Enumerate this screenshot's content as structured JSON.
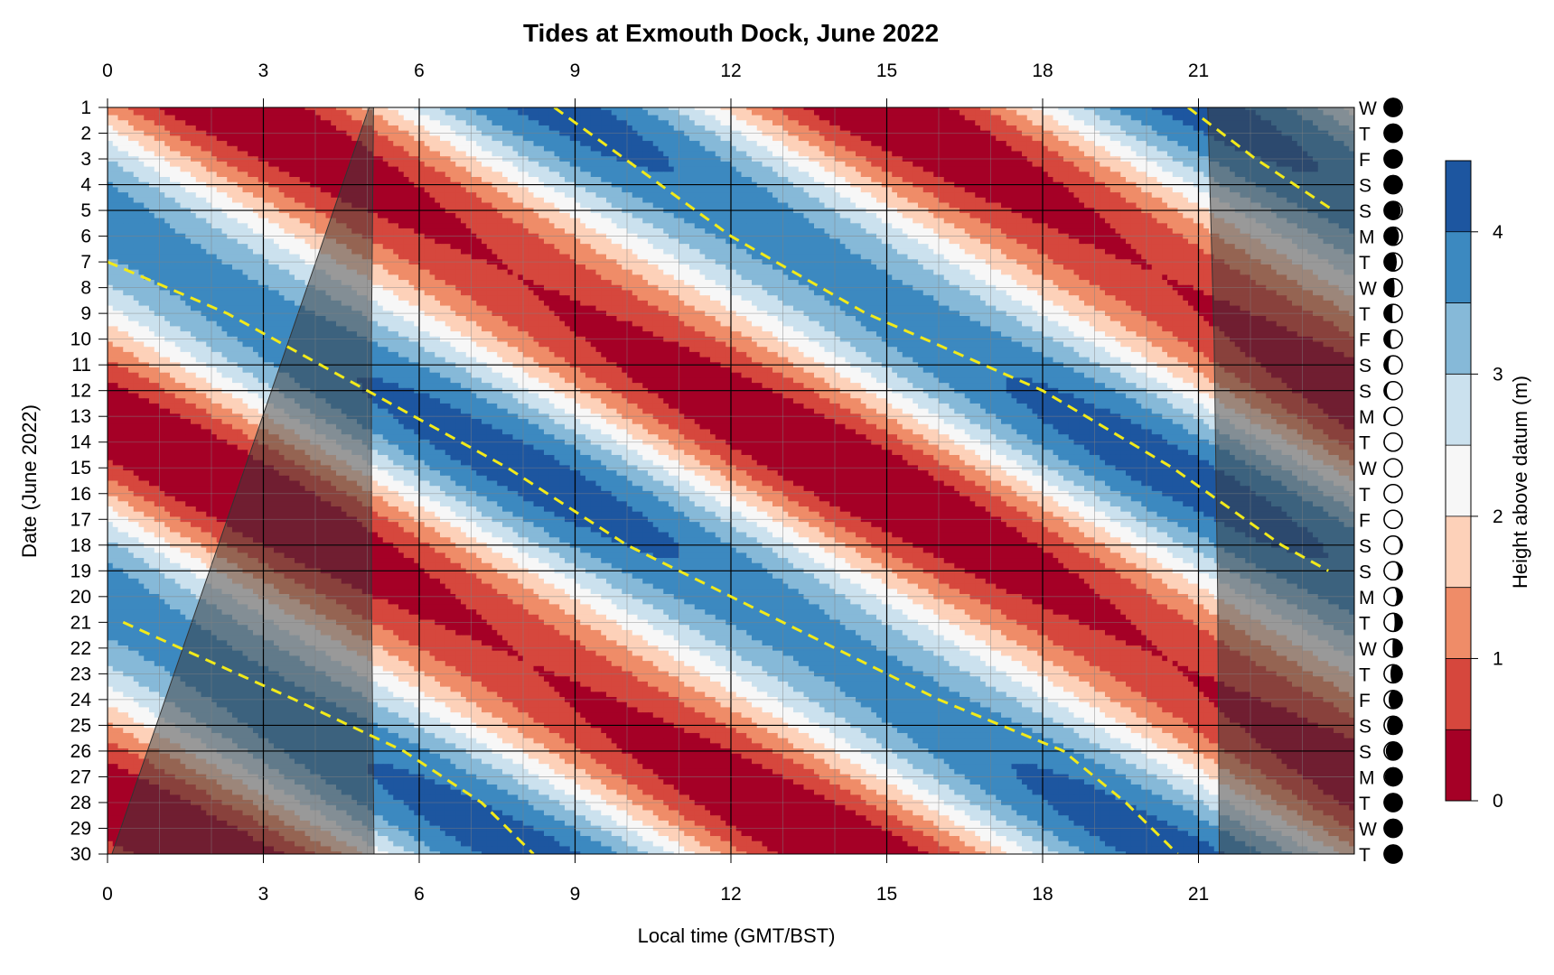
{
  "chart_data": {
    "type": "heatmap",
    "title": "Tides at Exmouth Dock, June 2022",
    "xlabel": "Local time (GMT/BST)",
    "ylabel": "Date (June 2022)",
    "xlim": [
      0,
      24
    ],
    "ylim": [
      1,
      30
    ],
    "x_ticks": [
      0,
      3,
      6,
      9,
      12,
      15,
      18,
      21
    ],
    "y_ticks": [
      1,
      2,
      3,
      4,
      5,
      6,
      7,
      8,
      9,
      10,
      11,
      12,
      13,
      14,
      15,
      16,
      17,
      18,
      19,
      20,
      21,
      22,
      23,
      24,
      25,
      26,
      27,
      28,
      29,
      30
    ],
    "day_letters": [
      "W",
      "T",
      "F",
      "S",
      "S",
      "M",
      "T",
      "W",
      "T",
      "F",
      "S",
      "S",
      "M",
      "T",
      "W",
      "T",
      "F",
      "S",
      "S",
      "M",
      "T",
      "W",
      "T",
      "F",
      "S",
      "S",
      "M",
      "T",
      "W",
      "T"
    ],
    "moon_illumination": [
      0.05,
      0.02,
      0.0,
      0.02,
      0.08,
      0.18,
      0.3,
      0.42,
      0.55,
      0.66,
      0.76,
      0.85,
      0.92,
      0.97,
      1.0,
      0.99,
      0.95,
      0.88,
      0.79,
      0.69,
      0.58,
      0.46,
      0.35,
      0.25,
      0.16,
      0.09,
      0.04,
      0.01,
      0.0,
      0.02
    ],
    "moon_waxing": [
      true,
      true,
      false,
      true,
      true,
      true,
      true,
      true,
      true,
      true,
      true,
      true,
      true,
      true,
      true,
      false,
      false,
      false,
      false,
      false,
      false,
      false,
      false,
      false,
      false,
      false,
      false,
      false,
      false,
      true
    ],
    "weekend_day_lines": [
      4,
      5,
      11,
      12,
      18,
      19,
      25,
      26
    ],
    "sunrise": [
      [
        1,
        5.12
      ],
      [
        10,
        5.08
      ],
      [
        20,
        5.08
      ],
      [
        30,
        5.13
      ]
    ],
    "sunset": [
      [
        1,
        21.18
      ],
      [
        10,
        21.3
      ],
      [
        20,
        21.37
      ],
      [
        30,
        21.4
      ]
    ],
    "colorbar": {
      "label": "Height above datum (m)",
      "ticks": [
        0,
        1,
        2,
        3,
        4
      ],
      "levels": [
        0,
        0.5,
        1.0,
        1.5,
        2.0,
        2.5,
        3.0,
        3.5,
        4.0,
        4.5
      ],
      "colors": [
        "#a50026",
        "#d6473d",
        "#ef8c68",
        "#fdd1b9",
        "#f7f7f7",
        "#cbe1ee",
        "#86b9d8",
        "#3c89c0",
        "#1d56a0"
      ]
    },
    "high_water_lines": [
      {
        "name": "",
        "points": [
          [
            1,
            8.6
          ],
          [
            6,
            12.0
          ],
          [
            9,
            14.6
          ],
          [
            12,
            18.0
          ],
          [
            15,
            20.5
          ],
          [
            18,
            22.6
          ],
          [
            19,
            23.5
          ]
        ]
      },
      {
        "name": "",
        "points": [
          [
            1,
            20.8
          ],
          [
            3,
            22.1
          ],
          [
            5,
            23.6
          ]
        ]
      },
      {
        "name": "",
        "points": [
          [
            7,
            0.0
          ],
          [
            9,
            2.3
          ],
          [
            12,
            5.0
          ],
          [
            15,
            7.7
          ],
          [
            18,
            10.0
          ],
          [
            21,
            13.0
          ],
          [
            24,
            16.0
          ],
          [
            26,
            18.4
          ],
          [
            28,
            19.6
          ],
          [
            30,
            20.6
          ]
        ]
      },
      {
        "name": "",
        "points": [
          [
            21,
            0.3
          ],
          [
            24,
            3.6
          ],
          [
            26,
            5.7
          ],
          [
            28,
            7.2
          ],
          [
            30,
            8.2
          ]
        ]
      }
    ],
    "tide_model": {
      "period_hours": 12.42,
      "phase_at_day1_hours": 8.6,
      "shift_hours_per_day": 0.84,
      "mean_m": 2.1,
      "amplitude_m": [
        1.6,
        2.15
      ],
      "spring_days": [
        15,
        30
      ]
    }
  }
}
